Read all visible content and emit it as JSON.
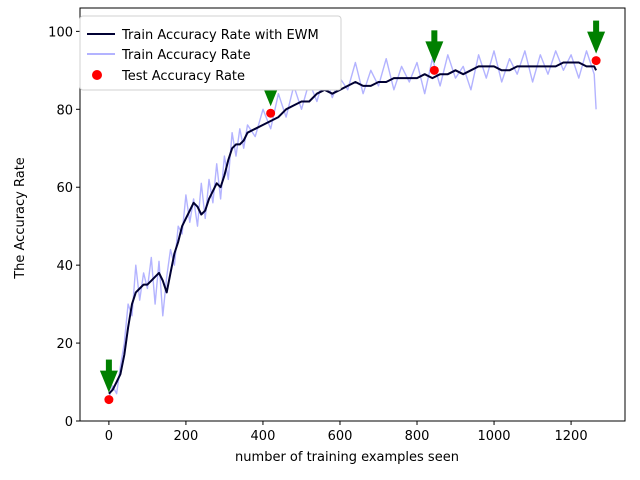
{
  "chart_data": {
    "type": "line",
    "xlabel": "number of training examples seen",
    "ylabel": "The Accuracy Rate",
    "xlim": [
      -75,
      1340
    ],
    "ylim": [
      0,
      106
    ],
    "x_ticks": [
      0,
      200,
      400,
      600,
      800,
      1000,
      1200
    ],
    "y_ticks": [
      0,
      20,
      40,
      60,
      80,
      100
    ],
    "grid": false,
    "legend_position": "top-left",
    "series": [
      {
        "name": "Train Accuracy Rate with EWM",
        "kind": "line",
        "color": "#000033",
        "x": [
          0,
          10,
          20,
          30,
          40,
          50,
          60,
          70,
          80,
          90,
          100,
          110,
          120,
          130,
          140,
          150,
          160,
          170,
          180,
          190,
          200,
          210,
          220,
          230,
          240,
          250,
          260,
          270,
          280,
          290,
          300,
          310,
          320,
          330,
          340,
          350,
          360,
          380,
          400,
          420,
          440,
          460,
          480,
          500,
          520,
          540,
          560,
          580,
          600,
          620,
          640,
          660,
          680,
          700,
          720,
          740,
          760,
          780,
          800,
          820,
          840,
          860,
          880,
          900,
          920,
          940,
          960,
          980,
          1000,
          1020,
          1040,
          1060,
          1080,
          1100,
          1120,
          1140,
          1160,
          1180,
          1200,
          1220,
          1240,
          1260,
          1265
        ],
        "y": [
          7,
          8,
          10,
          12,
          17,
          24,
          30,
          33,
          34,
          35,
          35,
          36,
          37,
          38,
          36,
          33,
          38,
          43,
          46,
          50,
          52,
          54,
          56,
          55,
          53,
          54,
          57,
          59,
          61,
          60,
          63,
          67,
          70,
          71,
          71,
          72,
          74,
          75,
          76,
          77,
          78,
          80,
          81,
          82,
          82,
          84,
          85,
          84,
          85,
          86,
          87,
          86,
          86,
          87,
          87,
          88,
          88,
          88,
          88,
          89,
          88,
          89,
          89,
          90,
          89,
          90,
          91,
          91,
          91,
          90,
          90,
          91,
          91,
          91,
          91,
          91,
          91,
          92,
          92,
          92,
          91,
          91,
          90
        ]
      },
      {
        "name": "Train Accuracy Rate",
        "kind": "line",
        "color": "#b3b3ff",
        "x": [
          0,
          10,
          20,
          30,
          40,
          50,
          60,
          70,
          80,
          90,
          100,
          110,
          120,
          130,
          140,
          150,
          160,
          170,
          180,
          190,
          200,
          210,
          220,
          230,
          240,
          250,
          260,
          270,
          280,
          290,
          300,
          310,
          320,
          330,
          340,
          350,
          360,
          380,
          400,
          420,
          440,
          460,
          480,
          500,
          520,
          540,
          560,
          580,
          600,
          620,
          640,
          660,
          680,
          700,
          720,
          740,
          760,
          780,
          800,
          820,
          840,
          860,
          880,
          900,
          920,
          940,
          960,
          980,
          1000,
          1020,
          1040,
          1060,
          1080,
          1100,
          1120,
          1140,
          1160,
          1180,
          1200,
          1220,
          1240,
          1260,
          1265
        ],
        "y": [
          6,
          9,
          7,
          14,
          20,
          30,
          27,
          40,
          31,
          38,
          34,
          42,
          30,
          41,
          27,
          37,
          44,
          40,
          50,
          48,
          58,
          51,
          57,
          50,
          61,
          52,
          62,
          56,
          66,
          57,
          68,
          62,
          74,
          68,
          75,
          70,
          76,
          73,
          80,
          75,
          84,
          78,
          86,
          80,
          87,
          82,
          89,
          83,
          88,
          85,
          92,
          84,
          90,
          86,
          93,
          85,
          91,
          87,
          92,
          84,
          93,
          86,
          94,
          88,
          91,
          85,
          94,
          88,
          95,
          87,
          93,
          89,
          95,
          87,
          94,
          89,
          95,
          90,
          94,
          88,
          95,
          89,
          80
        ]
      },
      {
        "name": "Test Accuracy Rate",
        "kind": "scatter",
        "color": "#ff0000",
        "x": [
          0,
          420,
          845,
          1265
        ],
        "y": [
          5.5,
          79,
          90,
          92.5
        ]
      }
    ],
    "markers": {
      "type": "arrow-down",
      "color": "#008000",
      "x": [
        0,
        420,
        845,
        1265
      ],
      "y": [
        5.5,
        79,
        90,
        92.5
      ]
    }
  }
}
